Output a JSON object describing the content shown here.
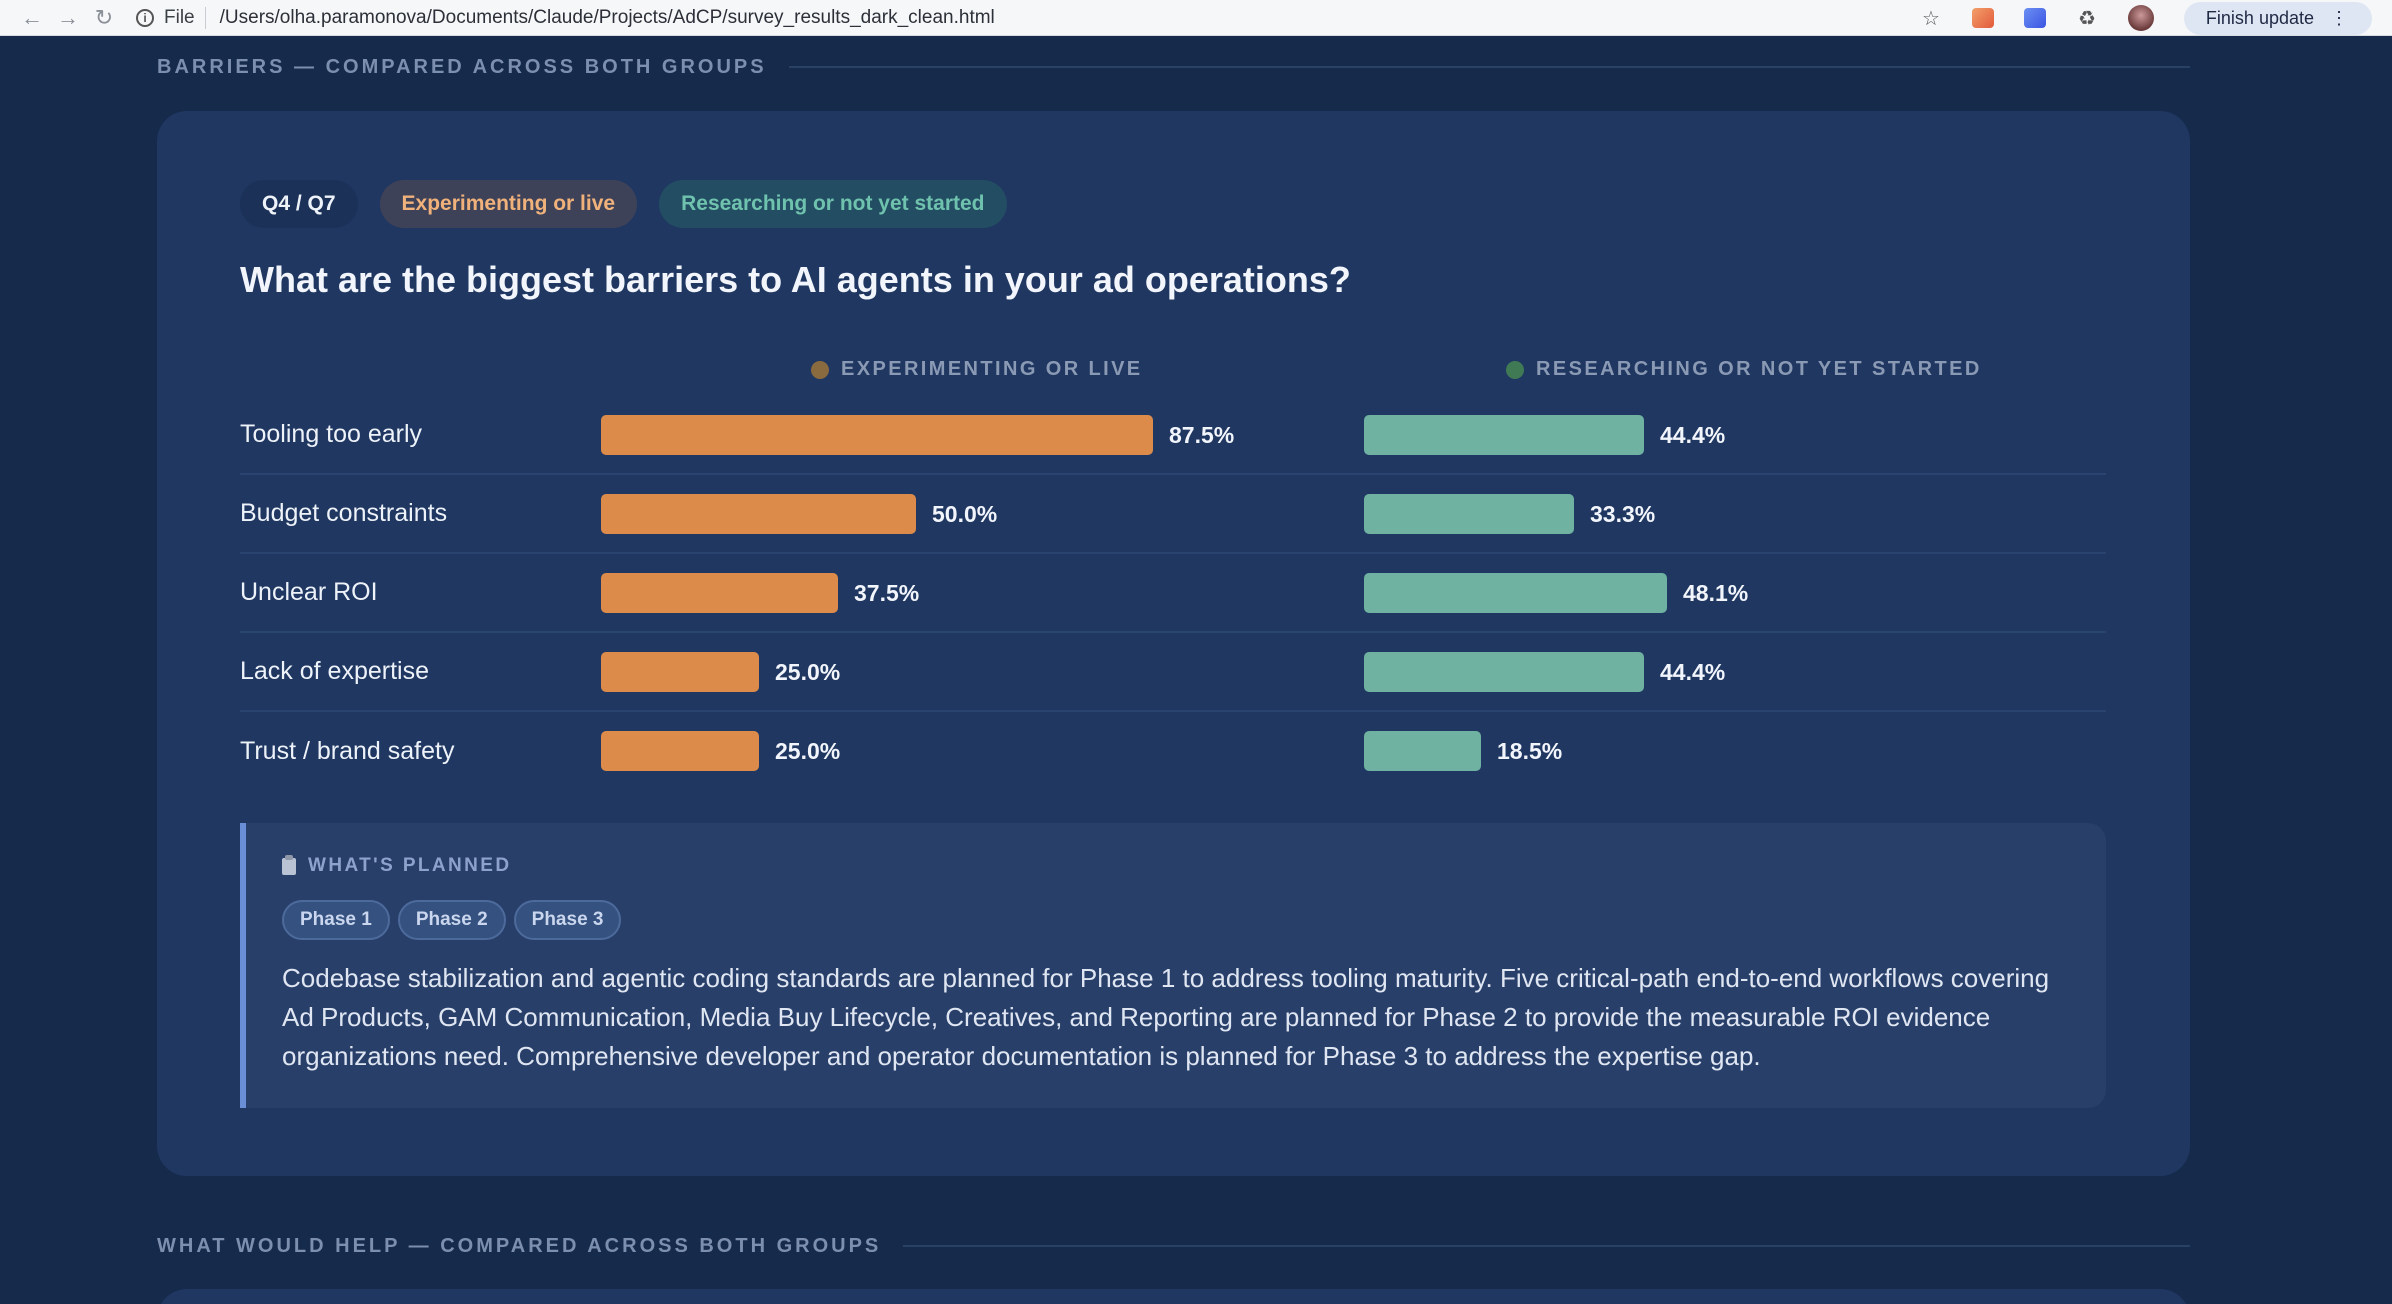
{
  "browser": {
    "file_label": "File",
    "url": "/Users/olha.paramonova/Documents/Claude/Projects/AdCP/survey_results_dark_clean.html",
    "update_label": "Finish update"
  },
  "sections": {
    "barriers_label": "BARRIERS — COMPARED ACROSS BOTH GROUPS",
    "help_label": "WHAT WOULD HELP — COMPARED ACROSS BOTH GROUPS"
  },
  "card": {
    "tags": {
      "question_id": "Q4 / Q7",
      "group_a": "Experimenting or live",
      "group_b": "Researching or not yet started"
    },
    "question": "What are the biggest barriers to AI agents in your ad operations?",
    "column_heads": {
      "exp": "EXPERIMENTING OR LIVE",
      "res": "RESEARCHING OR NOT YET STARTED"
    },
    "planned": {
      "heading": "WHAT'S PLANNED",
      "phases": [
        "Phase 1",
        "Phase 2",
        "Phase 3"
      ],
      "text": "Codebase stabilization and agentic coding standards are planned for Phase 1 to address tooling maturity. Five critical-path end-to-end workflows covering Ad Products, GAM Communication, Media Buy Lifecycle, Creatives, and Reporting are planned for Phase 2 to provide the measurable ROI evidence organizations need. Comprehensive developer and operator documentation is planned for Phase 3 to address the expertise gap."
    }
  },
  "colors": {
    "experimenting": "#dc8b4b",
    "researching": "#6fb2a2",
    "card_bg": "#1f3761",
    "page_bg": "#162a4b"
  },
  "chart_data": {
    "type": "bar",
    "categories": [
      "Tooling too early",
      "Budget constraints",
      "Unclear ROI",
      "Lack of expertise",
      "Trust / brand safety"
    ],
    "series": [
      {
        "name": "EXPERIMENTING OR LIVE",
        "values": [
          87.5,
          50.0,
          37.5,
          25.0,
          25.0
        ],
        "labels": [
          "87.5%",
          "50.0%",
          "37.5%",
          "25.0%",
          "25.0%"
        ]
      },
      {
        "name": "RESEARCHING OR NOT YET STARTED",
        "values": [
          44.4,
          33.3,
          48.1,
          44.4,
          18.5
        ],
        "labels": [
          "44.4%",
          "33.3%",
          "48.1%",
          "44.4%",
          "18.5%"
        ]
      }
    ],
    "xlim": [
      0,
      100
    ]
  }
}
